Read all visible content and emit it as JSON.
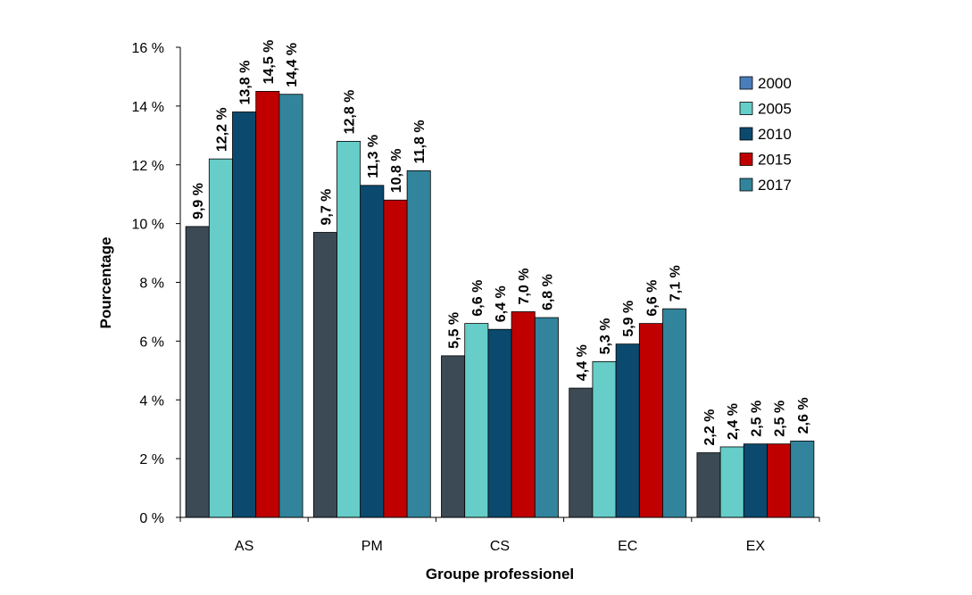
{
  "chart_data": {
    "type": "bar",
    "xlabel": "Groupe professionel",
    "ylabel": "Pourcentage",
    "ylim": [
      0,
      16
    ],
    "y_ticks": [
      "0 %",
      "2 %",
      "4 %",
      "6 %",
      "8 %",
      "10 %",
      "12 %",
      "14 %",
      "16 %"
    ],
    "y_tick_values": [
      0,
      2,
      4,
      6,
      8,
      10,
      12,
      14,
      16
    ],
    "categories": [
      "AS",
      "PM",
      "CS",
      "EC",
      "EX"
    ],
    "legend_position": "top-right",
    "grid": false,
    "series": [
      {
        "name": "2000",
        "color": "#3b4a55",
        "legend_color": "#4a7ebb",
        "values": [
          9.9,
          9.7,
          5.5,
          4.4,
          2.2
        ],
        "labels": [
          "9,9 %",
          "9,7 %",
          "5,5 %",
          "4,4 %",
          "2,2 %"
        ]
      },
      {
        "name": "2005",
        "color": "#66cdc8",
        "legend_color": "#66cdc8",
        "values": [
          12.2,
          12.8,
          6.6,
          5.3,
          2.4
        ],
        "labels": [
          "12,2 %",
          "12,8 %",
          "6,6 %",
          "5,3 %",
          "2,4 %"
        ]
      },
      {
        "name": "2010",
        "color": "#0b4a6e",
        "legend_color": "#0b4a6e",
        "values": [
          13.8,
          11.3,
          6.4,
          5.9,
          2.5
        ],
        "labels": [
          "13,8 %",
          "11,3 %",
          "6,4 %",
          "5,9 %",
          "2,5 %"
        ]
      },
      {
        "name": "2015",
        "color": "#c00000",
        "legend_color": "#c00000",
        "values": [
          14.5,
          10.8,
          7.0,
          6.6,
          2.5
        ],
        "labels": [
          "14,5 %",
          "10,8 %",
          "7,0 %",
          "6,6 %",
          "2,5 %"
        ]
      },
      {
        "name": "2017",
        "color": "#31849b",
        "legend_color": "#31849b",
        "values": [
          14.4,
          11.8,
          6.8,
          7.1,
          2.6
        ],
        "labels": [
          "14,4 %",
          "11,8 %",
          "6,8 %",
          "7,1 %",
          "2,6 %"
        ]
      }
    ]
  }
}
